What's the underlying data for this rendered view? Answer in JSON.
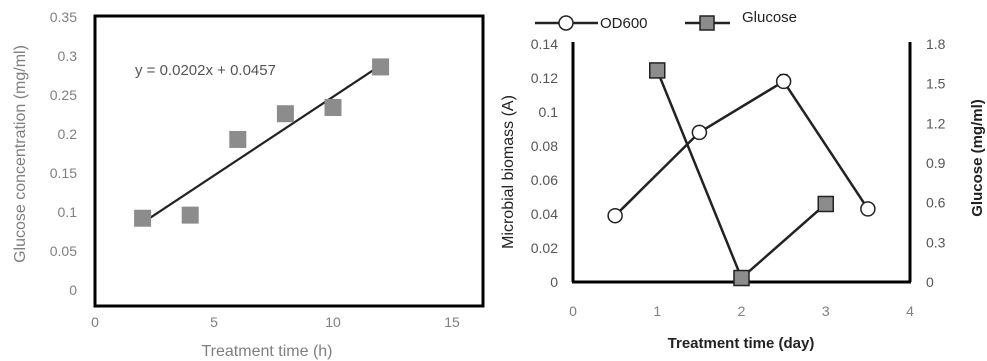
{
  "chart_data": [
    {
      "type": "scatter",
      "xlabel": "Treatment time (h)",
      "ylabel": "Glucose concentration (mg/ml)",
      "xlim": [
        0,
        15
      ],
      "ylim": [
        0,
        0.35
      ],
      "xticks": [
        "0",
        "5",
        "10",
        "15"
      ],
      "yticks": [
        "0",
        "0.05",
        "0.1",
        "0.15",
        "0.2",
        "0.25",
        "0.3",
        "0.35"
      ],
      "series": [
        {
          "x": [
            2,
            4,
            6,
            8,
            10,
            12
          ],
          "y": [
            0.092,
            0.096,
            0.193,
            0.226,
            0.234,
            0.286
          ],
          "marker": "square",
          "color": "#8c8c8c"
        }
      ],
      "trendline": {
        "slope": 0.0202,
        "intercept": 0.0457,
        "x_range": [
          2,
          12
        ]
      },
      "annotation": "y = 0.0202x + 0.0457",
      "grid": false
    },
    {
      "type": "line",
      "xlabel": "Treatment time (day)",
      "ylabel_left": "Microbial biomass (A)",
      "ylabel_right": "Glucose (mg/ml)",
      "xlim": [
        0,
        4
      ],
      "ylim_left": [
        0,
        0.14
      ],
      "ylim_right": [
        0,
        1.8
      ],
      "xticks": [
        "0",
        "1",
        "2",
        "3",
        "4"
      ],
      "yticks_left": [
        "0",
        "0.02",
        "0.04",
        "0.06",
        "0.08",
        "0.1",
        "0.12",
        "0.14"
      ],
      "yticks_right": [
        "0",
        "0.3",
        "0.6",
        "0.9",
        "1.2",
        "1.5",
        "1.8"
      ],
      "legend_position": "top",
      "series": [
        {
          "name": "OD600",
          "axis": "left",
          "marker": "circle",
          "x": [
            0.5,
            1.5,
            2.5,
            3.5
          ],
          "y": [
            0.039,
            0.088,
            0.118,
            0.043
          ],
          "error": [
            0,
            0,
            0.004,
            0
          ]
        },
        {
          "name": "Glucose",
          "axis": "right",
          "marker": "square",
          "x": [
            1,
            2,
            3
          ],
          "y": [
            1.6,
            0.03,
            0.59
          ]
        }
      ],
      "grid": false
    }
  ],
  "colors": {
    "marker_gray": "#8c8c8c",
    "line_dark": "#222222",
    "tick_gray": "#7f7f7f"
  }
}
